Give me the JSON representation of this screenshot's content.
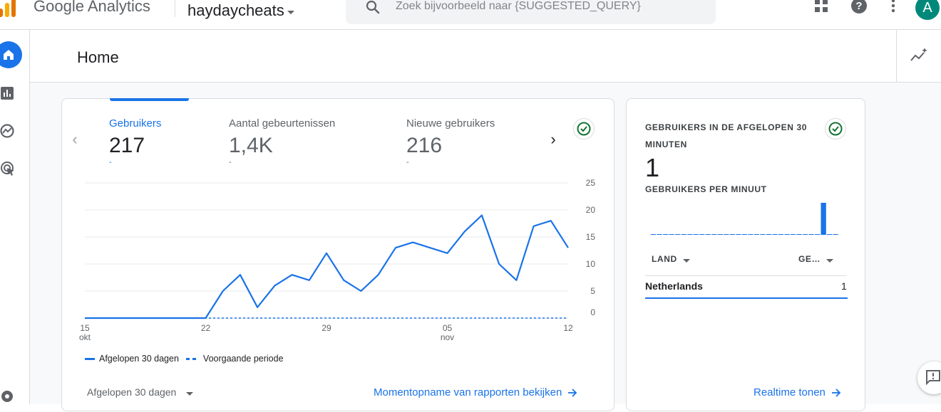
{
  "topbar": {
    "brand": "Google Analytics",
    "account": "haydaycheats",
    "search_placeholder": "Zoek bijvoorbeeld naar {SUGGESTED_QUERY}",
    "avatar_letter": "A",
    "icons": [
      "apps-grid-icon",
      "help-icon",
      "more-vert-icon"
    ]
  },
  "leftnav": {
    "items": [
      "home-icon",
      "reports-icon",
      "explore-icon",
      "advertising-icon",
      "settings-icon"
    ]
  },
  "page": {
    "title": "Home"
  },
  "overview": {
    "metrics": [
      {
        "label": "Gebruikers",
        "value": "217",
        "delta": "-",
        "active": true
      },
      {
        "label": "Aantal gebeurtenissen",
        "value": "1,4K",
        "delta": "-",
        "active": false
      },
      {
        "label": "Nieuwe gebruikers",
        "value": "216",
        "delta": "-",
        "active": false
      }
    ],
    "legend": {
      "current": "Afgelopen 30 dagen",
      "previous": "Voorgaande periode"
    },
    "date_range": "Afgelopen 30 dagen",
    "link": "Momentopname van rapporten bekijken"
  },
  "chart_data": {
    "type": "line",
    "y_ticks": [
      "25",
      "20",
      "15",
      "10",
      "5",
      "0"
    ],
    "ylim": [
      0,
      25
    ],
    "x_ticks": [
      {
        "day": 0,
        "label": "15",
        "sub": "okt"
      },
      {
        "day": 7,
        "label": "22",
        "sub": ""
      },
      {
        "day": 14,
        "label": "29",
        "sub": ""
      },
      {
        "day": 21,
        "label": "05",
        "sub": "nov"
      },
      {
        "day": 28,
        "label": "12",
        "sub": ""
      }
    ],
    "series": [
      {
        "name": "Afgelopen 30 dagen",
        "style": "solid",
        "values": [
          0,
          0,
          0,
          0,
          0,
          0,
          0,
          0,
          5,
          8,
          2,
          6,
          8,
          7,
          12,
          7,
          5,
          8,
          13,
          14,
          13,
          12,
          16,
          19,
          10,
          7,
          17,
          18,
          13
        ]
      },
      {
        "name": "Voorgaande periode",
        "style": "dashed",
        "values": [
          0,
          0,
          0,
          0,
          0,
          0,
          0,
          0,
          0,
          0,
          0,
          0,
          0,
          0,
          0,
          0,
          0,
          0,
          0,
          0,
          0,
          0,
          0,
          0,
          0,
          0,
          0,
          0,
          0
        ]
      }
    ],
    "grid": true,
    "colors": {
      "series": "#1a73e8",
      "grid": "#e8eaed",
      "axis_text": "#5f6368"
    }
  },
  "realtime": {
    "title": "GEBRUIKERS IN DE AFGELOPEN 30 MINUTEN",
    "value": "1",
    "subtitle": "GEBRUIKERS PER MINUUT",
    "per_minute": [
      0,
      0,
      0,
      0,
      0,
      0,
      0,
      0,
      0,
      0,
      0,
      0,
      0,
      0,
      0,
      0,
      0,
      0,
      0,
      0,
      0,
      0,
      0,
      0,
      0,
      0,
      0,
      0,
      1,
      0,
      0
    ],
    "col_country": "LAND",
    "col_users": "GE…",
    "rows": [
      {
        "country": "Netherlands",
        "users": "1"
      }
    ],
    "link": "Realtime tonen"
  },
  "colors": {
    "accent": "#1a73e8",
    "success": "#137333",
    "avatar": "#00897b"
  }
}
